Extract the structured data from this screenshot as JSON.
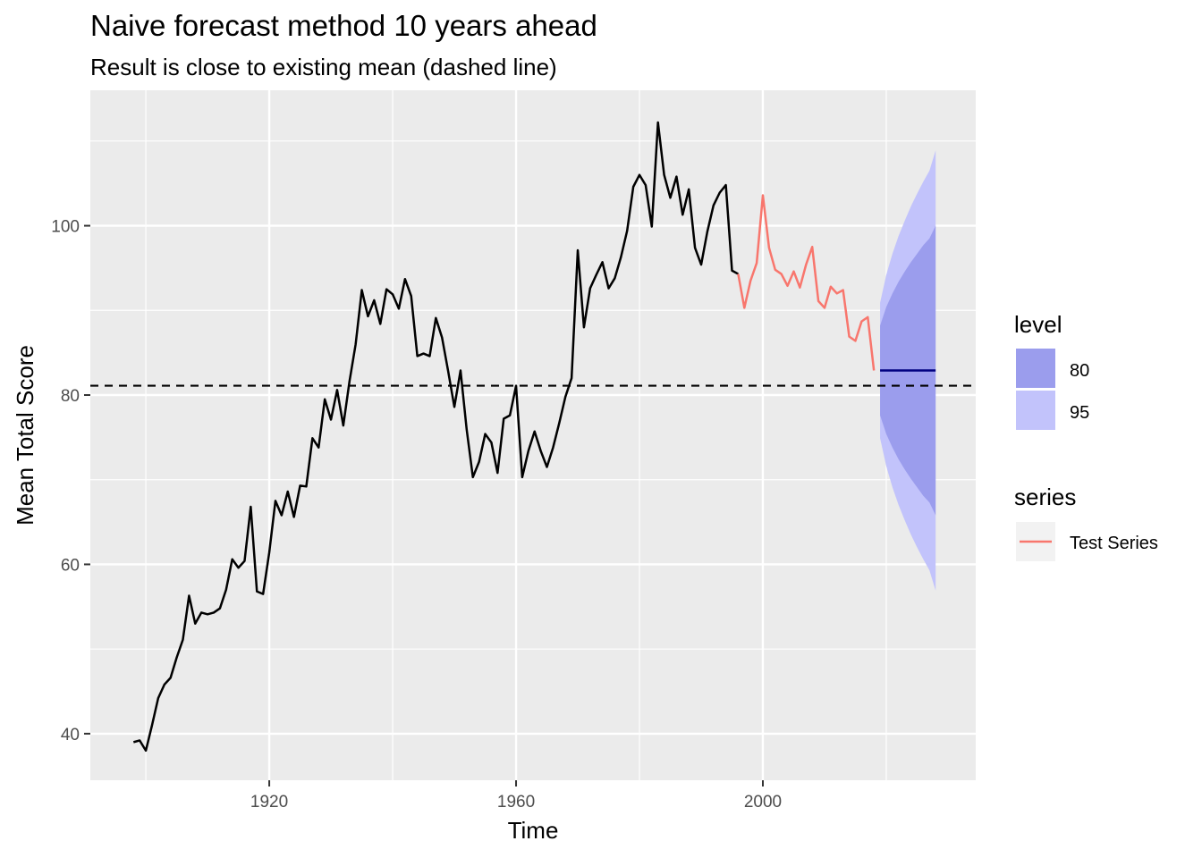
{
  "chart_data": {
    "type": "line",
    "title": "Naive forecast method 10 years ahead",
    "subtitle": "Result is close to existing mean (dashed line)",
    "xlabel": "Time",
    "ylabel": "Mean Total Score",
    "xlim": [
      1891,
      2034.5
    ],
    "ylim": [
      34.5,
      116
    ],
    "x_ticks": [
      1920,
      1960,
      2000
    ],
    "y_ticks": [
      40,
      60,
      80,
      100
    ],
    "grid": true,
    "mean_line": {
      "y": 81.1,
      "style": "dashed",
      "color": "#000000"
    },
    "series": [
      {
        "color": "#000000",
        "x": [
          1898,
          1899,
          1900,
          1901,
          1902,
          1903,
          1904,
          1905,
          1906,
          1907,
          1908,
          1909,
          1910,
          1911,
          1912,
          1913,
          1914,
          1915,
          1916,
          1917,
          1918,
          1919,
          1920,
          1921,
          1922,
          1923,
          1924,
          1925,
          1926,
          1927,
          1928,
          1929,
          1930,
          1931,
          1932,
          1933,
          1934,
          1935,
          1936,
          1937,
          1938,
          1939,
          1940,
          1941,
          1942,
          1943,
          1944,
          1945,
          1946,
          1947,
          1948,
          1949,
          1950,
          1951,
          1952,
          1953,
          1954,
          1955,
          1956,
          1957,
          1958,
          1959,
          1960,
          1961,
          1962,
          1963,
          1964,
          1965,
          1966,
          1967,
          1968,
          1969,
          1970,
          1971,
          1972,
          1973,
          1974,
          1975,
          1976,
          1977,
          1978,
          1979,
          1980,
          1981,
          1982,
          1983,
          1984,
          1985,
          1986,
          1987,
          1988,
          1989,
          1990,
          1991,
          1992,
          1993,
          1994,
          1995,
          1996
        ],
        "values": [
          39.0,
          39.2,
          38.0,
          41.0,
          44.2,
          45.8,
          46.6,
          49.0,
          51.1,
          56.3,
          53.0,
          54.3,
          54.1,
          54.3,
          54.8,
          57.0,
          60.6,
          59.6,
          60.4,
          66.8,
          56.8,
          56.5,
          61.4,
          67.5,
          65.8,
          68.6,
          65.6,
          69.3,
          69.2,
          74.9,
          73.8,
          79.5,
          77.1,
          80.6,
          76.4,
          81.6,
          86.0,
          92.4,
          89.3,
          91.2,
          88.4,
          92.5,
          91.9,
          90.2,
          93.7,
          91.7,
          84.6,
          84.9,
          84.6,
          89.1,
          86.8,
          82.8,
          78.6,
          82.9,
          75.9,
          70.3,
          72.1,
          75.4,
          74.4,
          70.8,
          77.2,
          77.6,
          81.1,
          70.3,
          73.4,
          75.7,
          73.4,
          71.5,
          73.8,
          76.7,
          79.8,
          82.0,
          97.1,
          88.0,
          92.6,
          94.2,
          95.7,
          92.6,
          93.8,
          96.3,
          99.4,
          104.6,
          106.0,
          104.8,
          99.9,
          112.2,
          106.0,
          103.3,
          105.8,
          101.3,
          104.3,
          97.4,
          95.4,
          99.3,
          102.4,
          103.9,
          104.8,
          94.7,
          94.3
        ],
        "line_width": 2.5
      },
      {
        "name": "Test Series",
        "color": "#f8766d",
        "x": [
          1996,
          1997,
          1998,
          1999,
          2000,
          2001,
          2002,
          2003,
          2004,
          2005,
          2006,
          2007,
          2008,
          2009,
          2010,
          2011,
          2012,
          2013,
          2014,
          2015,
          2016,
          2017,
          2018
        ],
        "values": [
          94.3,
          90.3,
          93.5,
          95.6,
          103.6,
          97.4,
          94.8,
          94.3,
          92.9,
          94.6,
          92.7,
          95.4,
          97.5,
          91.1,
          90.3,
          92.8,
          92.0,
          92.4,
          86.9,
          86.4,
          88.7,
          89.2,
          82.9
        ],
        "line_width": 2.5
      },
      {
        "color": "#000080",
        "x": [
          2019,
          2028
        ],
        "values": [
          82.9,
          82.9
        ],
        "line_width": 2.5
      }
    ],
    "forecast_bands": [
      {
        "level": "95",
        "color": "#c2c3fb",
        "x": [
          2019,
          2020,
          2021,
          2022,
          2023,
          2024,
          2025,
          2026,
          2027,
          2028
        ],
        "lower": [
          74.9,
          71.6,
          69.1,
          67.0,
          65.2,
          63.5,
          62.0,
          60.6,
          59.3,
          56.9
        ],
        "upper": [
          90.9,
          94.2,
          96.7,
          98.8,
          100.6,
          102.3,
          103.8,
          105.2,
          106.5,
          108.9
        ]
      },
      {
        "level": "80",
        "color": "#9b9ded",
        "x": [
          2019,
          2020,
          2021,
          2022,
          2023,
          2024,
          2025,
          2026,
          2027,
          2028
        ],
        "lower": [
          77.6,
          75.4,
          73.8,
          72.4,
          71.2,
          70.1,
          69.1,
          68.1,
          67.3,
          65.8
        ],
        "upper": [
          88.2,
          90.4,
          92.0,
          93.4,
          94.6,
          95.7,
          96.7,
          97.7,
          98.5,
          100.0
        ]
      }
    ],
    "legend": {
      "placement": "right",
      "level": {
        "title": "level",
        "items": [
          {
            "label": "80",
            "color": "#9b9ded"
          },
          {
            "label": "95",
            "color": "#c2c3fb"
          }
        ]
      },
      "series": {
        "title": "series",
        "items": [
          {
            "label": "Test Series",
            "color": "#f8766d"
          }
        ]
      }
    }
  }
}
